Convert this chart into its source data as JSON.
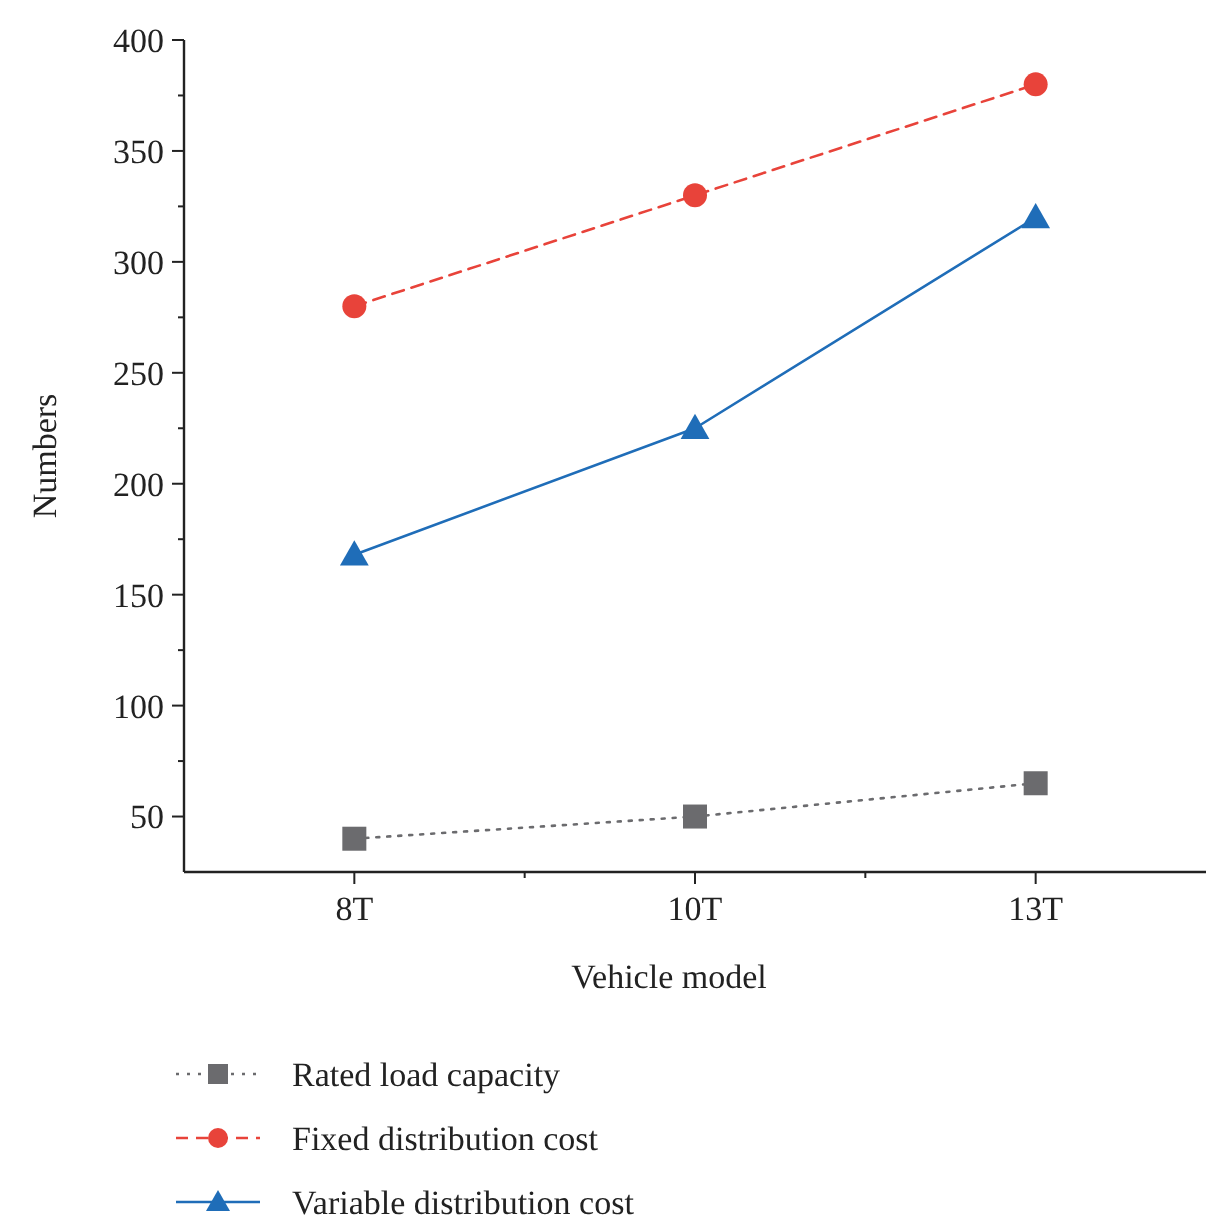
{
  "chart_data": {
    "type": "line",
    "xlabel": "Vehicle model",
    "ylabel": "Numbers",
    "categories": [
      "8T",
      "10T",
      "13T"
    ],
    "series": [
      {
        "name": "Rated load capacity",
        "color": "#6b6b6e",
        "values": [
          40,
          50,
          65
        ],
        "marker": "square",
        "line_style": "dotted"
      },
      {
        "name": "Fixed distribution cost",
        "color": "#e8433a",
        "values": [
          280,
          330,
          380
        ],
        "marker": "circle",
        "line_style": "dashed"
      },
      {
        "name": "Variable distribution cost",
        "color": "#1f6db8",
        "values": [
          168,
          225,
          320
        ],
        "marker": "triangle",
        "line_style": "solid"
      }
    ],
    "ylim": [
      25,
      400
    ],
    "yticks": [
      50,
      {
        "value": 75,
        "label": null
      },
      100,
      {
        "value": 125,
        "label": null
      },
      150,
      {
        "value": 175,
        "label": null
      },
      200,
      {
        "value": 225,
        "label": null
      },
      250,
      {
        "value": 275,
        "label": null
      },
      300,
      {
        "value": 325,
        "label": null
      },
      350,
      {
        "value": 375,
        "label": null
      },
      400
    ],
    "grid": false,
    "legend": "bottom"
  }
}
